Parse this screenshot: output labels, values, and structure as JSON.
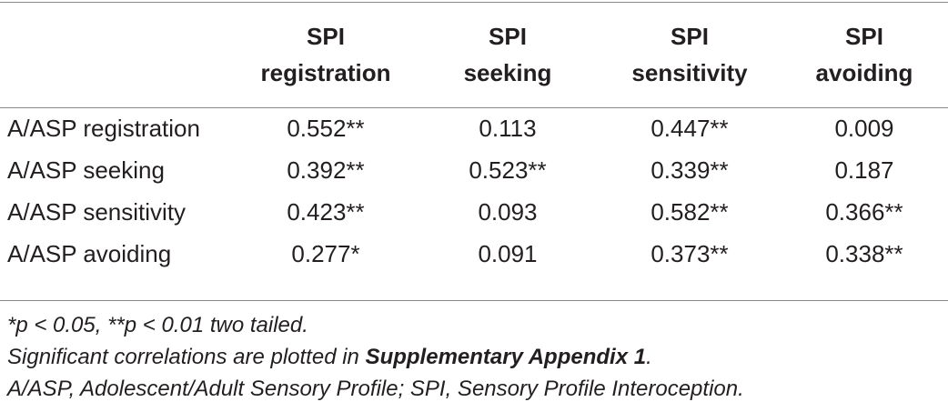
{
  "table": {
    "header": [
      [
        "SPI",
        "registration"
      ],
      [
        "SPI",
        "seeking"
      ],
      [
        "SPI",
        "sensitivity"
      ],
      [
        "SPI",
        "avoiding"
      ]
    ],
    "rows": [
      [
        "A/ASP registration",
        "0.552**",
        "0.113",
        "0.447**",
        "0.009"
      ],
      [
        "A/ASP seeking",
        "0.392**",
        "0.523**",
        "0.339**",
        "0.187"
      ],
      [
        "A/ASP sensitivity",
        "0.423**",
        "0.093",
        "0.582**",
        "0.366**"
      ],
      [
        "A/ASP avoiding",
        "0.277*",
        "0.091",
        "0.373**",
        "0.338**"
      ]
    ]
  },
  "footnotes": {
    "significance": "*p < 0.05, **p < 0.01 two tailed.",
    "plotted": {
      "before": "Significant correlations are plotted in ",
      "bold": "Supplementary Appendix 1",
      "after": "."
    },
    "abbreviations": "A/ASP, Adolescent/Adult Sensory Profile; SPI, Sensory Profile Interoception."
  }
}
